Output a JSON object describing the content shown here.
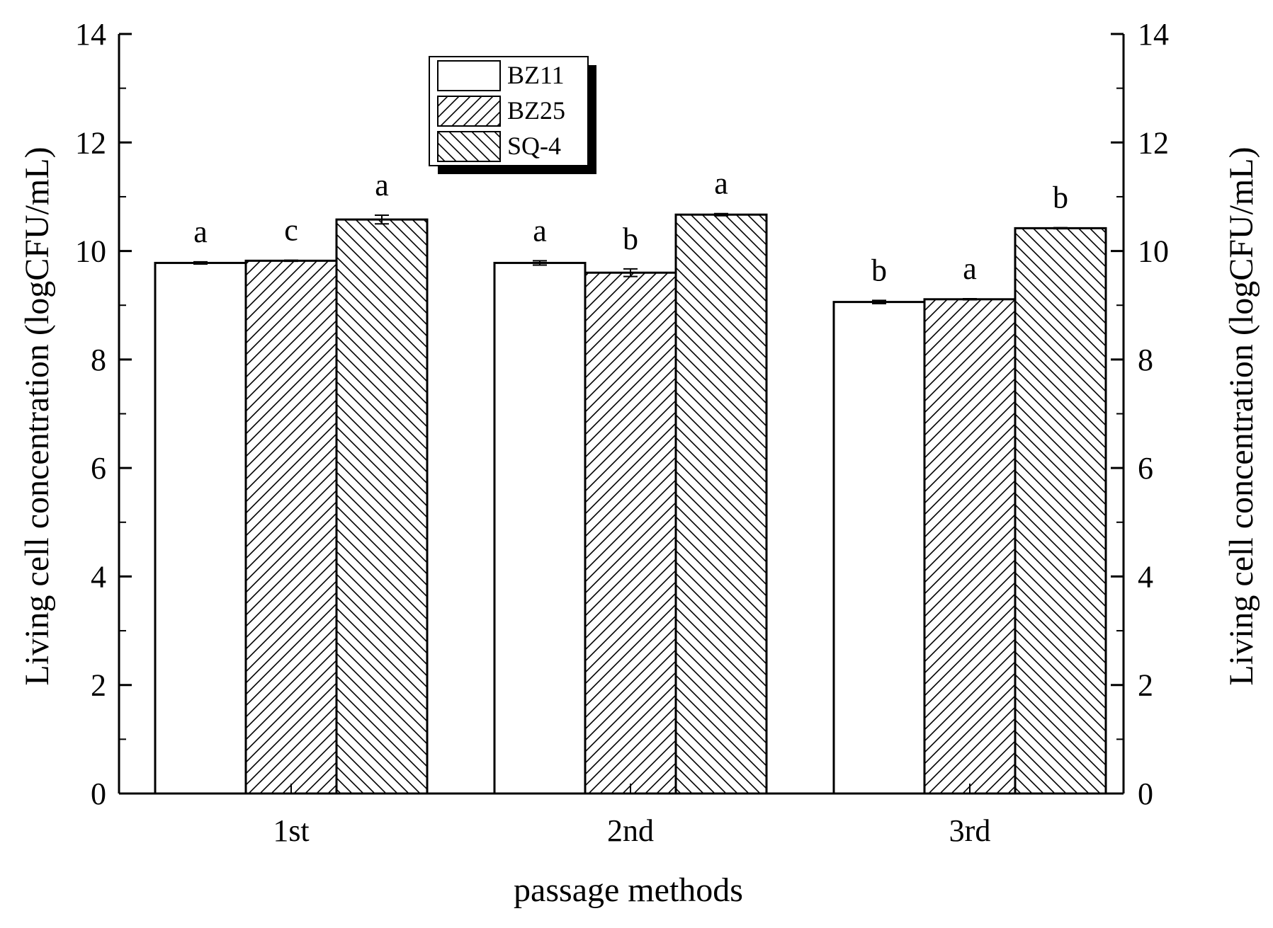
{
  "chart_data": {
    "type": "bar",
    "categories": [
      "1st",
      "2nd",
      "3rd"
    ],
    "series": [
      {
        "name": "BZ11",
        "pattern": "none",
        "values": [
          9.78,
          9.78,
          9.06
        ],
        "errors": [
          0.02,
          0.04,
          0.03
        ],
        "labels": [
          "a",
          "a",
          "b"
        ]
      },
      {
        "name": "BZ25",
        "pattern": "forward-diagonal",
        "values": [
          9.82,
          9.6,
          9.11
        ],
        "errors": [
          0.01,
          0.07,
          0.01
        ],
        "labels": [
          "c",
          "b",
          "a"
        ]
      },
      {
        "name": "SQ-4",
        "pattern": "backward-diagonal",
        "values": [
          10.58,
          10.67,
          10.42
        ],
        "errors": [
          0.08,
          0.02,
          0.01
        ],
        "labels": [
          "a",
          "a",
          "b"
        ]
      }
    ],
    "xlabel": "passage methods",
    "ylabel": "Living cell concentration (logCFU/mL)",
    "ylabel_right": "Living cell concentration (logCFU/mL)",
    "ylim": [
      0,
      14
    ],
    "yticks": [
      "0",
      "2",
      "4",
      "6",
      "8",
      "10",
      "12",
      "14"
    ],
    "grid": false,
    "legend_position": "top-left",
    "colors": {
      "bar_fill": "#ffffff",
      "stroke": "#000000",
      "legend_shadow": "#000000"
    }
  }
}
